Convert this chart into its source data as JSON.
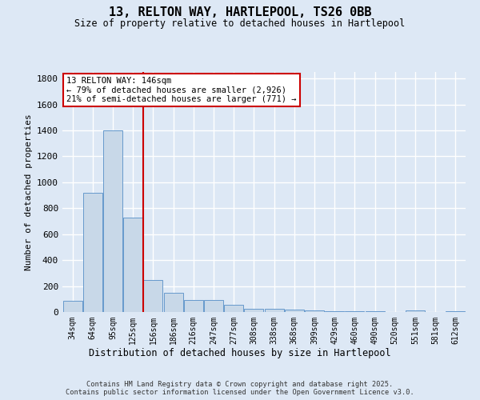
{
  "title_line1": "13, RELTON WAY, HARTLEPOOL, TS26 0BB",
  "title_line2": "Size of property relative to detached houses in Hartlepool",
  "xlabel": "Distribution of detached houses by size in Hartlepool",
  "ylabel": "Number of detached properties",
  "bar_values": [
    85,
    920,
    1400,
    730,
    245,
    145,
    90,
    90,
    55,
    25,
    25,
    20,
    10,
    5,
    5,
    5,
    0,
    15,
    0,
    5
  ],
  "bin_labels": [
    "34sqm",
    "64sqm",
    "95sqm",
    "125sqm",
    "156sqm",
    "186sqm",
    "216sqm",
    "247sqm",
    "277sqm",
    "308sqm",
    "338sqm",
    "368sqm",
    "399sqm",
    "429sqm",
    "460sqm",
    "490sqm",
    "520sqm",
    "551sqm",
    "581sqm",
    "612sqm"
  ],
  "bar_color": "#c8d8e8",
  "bar_edge_color": "#6699cc",
  "vline_color": "#cc0000",
  "annotation_text": "13 RELTON WAY: 146sqm\n← 79% of detached houses are smaller (2,926)\n21% of semi-detached houses are larger (771) →",
  "annotation_box_color": "#ffffff",
  "annotation_box_edge": "#cc0000",
  "ylim": [
    0,
    1850
  ],
  "yticks": [
    0,
    200,
    400,
    600,
    800,
    1000,
    1200,
    1400,
    1600,
    1800
  ],
  "bg_color": "#dde8f5",
  "grid_color": "#ffffff",
  "footer_line1": "Contains HM Land Registry data © Crown copyright and database right 2025.",
  "footer_line2": "Contains public sector information licensed under the Open Government Licence v3.0."
}
